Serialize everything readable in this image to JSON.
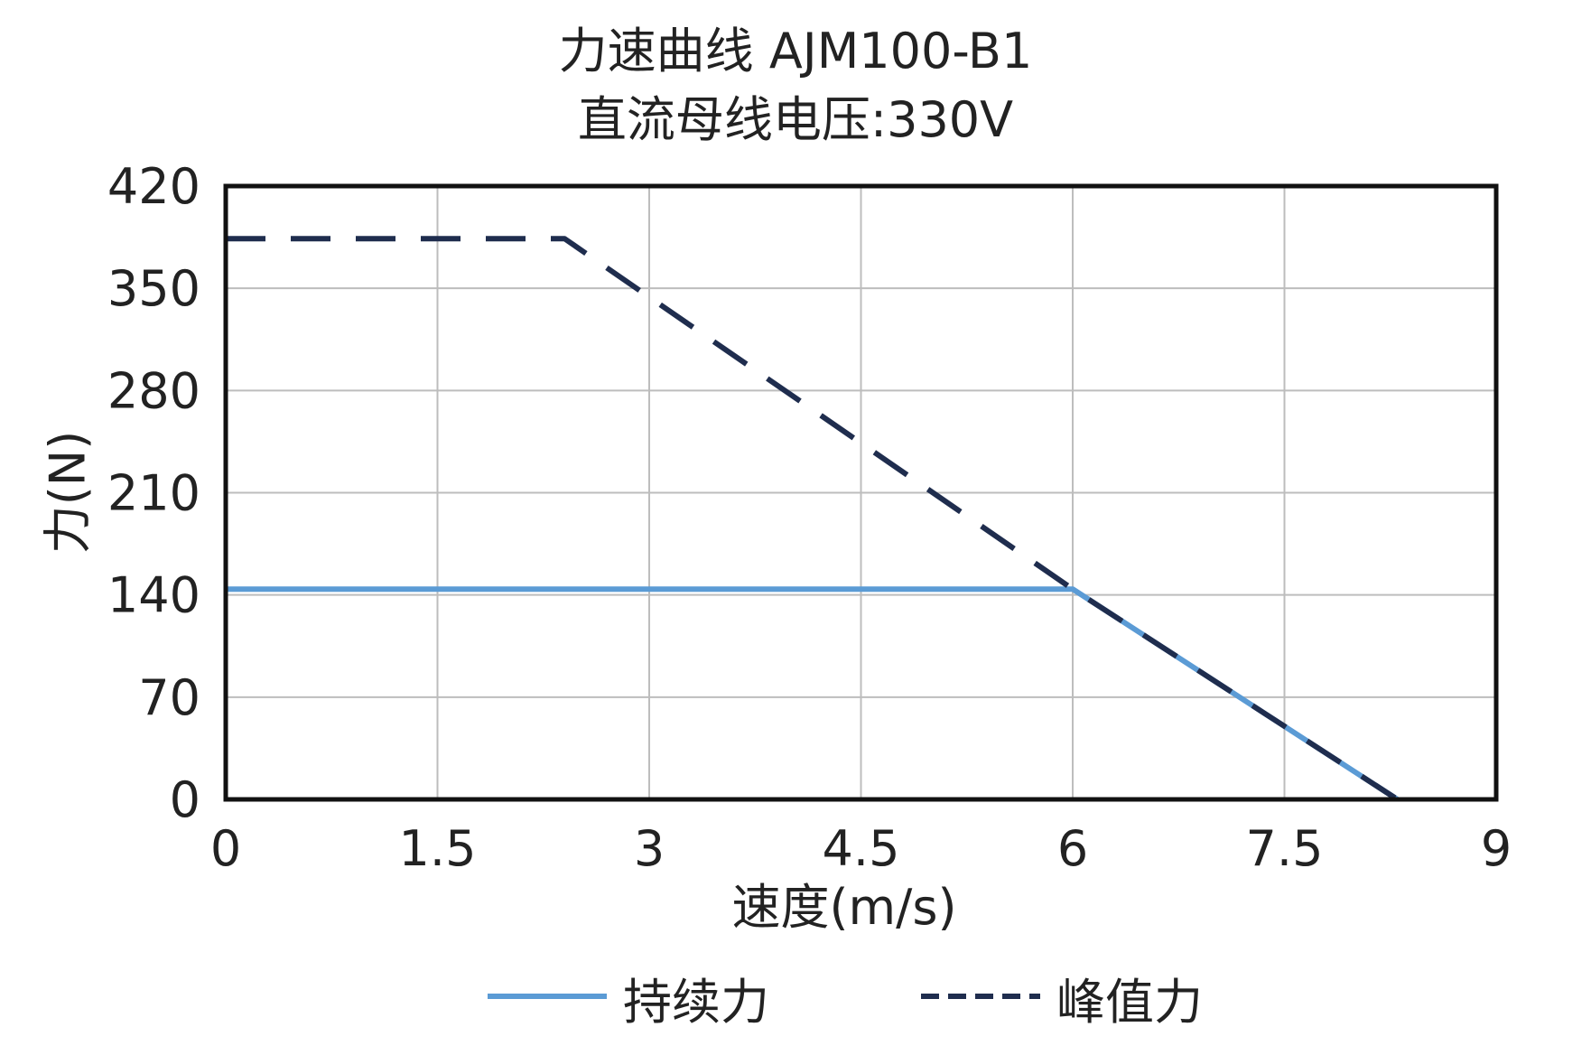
{
  "chart_data": {
    "type": "line",
    "title": "力速曲线 AJM100-B1",
    "subtitle": "直流母线电压:330V",
    "xlabel": "速度(m/s)",
    "ylabel": "力(N)",
    "xlim": [
      0,
      9
    ],
    "ylim": [
      0,
      420
    ],
    "xticks": [
      "0",
      "1.5",
      "3",
      "4.5",
      "6",
      "7.5",
      "9"
    ],
    "yticks": [
      "0",
      "70",
      "140",
      "210",
      "280",
      "350",
      "420"
    ],
    "grid": true,
    "legend_position": "bottom",
    "series": [
      {
        "name": "持续力",
        "style": "solid",
        "color": "#5b9bd5",
        "x": [
          0,
          6.0,
          8.3
        ],
        "y": [
          144,
          144,
          0
        ]
      },
      {
        "name": "峰值力",
        "style": "dashed",
        "color": "#1f2d4e",
        "x": [
          0,
          2.4,
          6.0,
          8.3
        ],
        "y": [
          384,
          384,
          144,
          0
        ]
      }
    ]
  }
}
